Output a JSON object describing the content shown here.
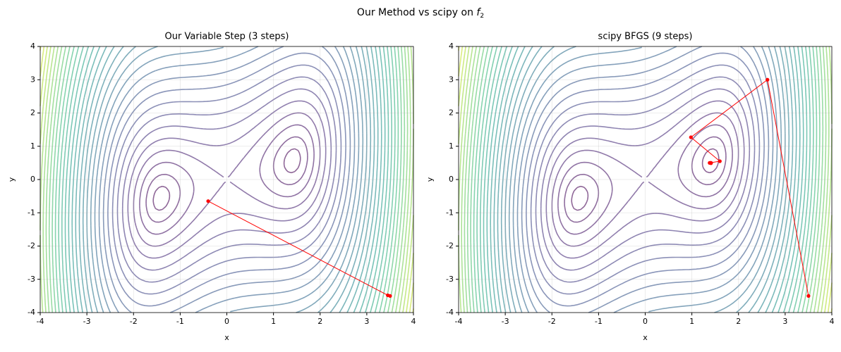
{
  "title": "Our Method vs scipy on",
  "title_symbol": "f",
  "title_subscript": "2",
  "chart_data": [
    {
      "type": "line",
      "title": "Our Variable Step (3 steps)",
      "xlabel": "x",
      "ylabel": "y",
      "xlim": [
        -4,
        4
      ],
      "ylim": [
        -4,
        4
      ],
      "xticks": [
        -4,
        -3,
        -2,
        -1,
        0,
        1,
        2,
        3,
        4
      ],
      "yticks": [
        -4,
        -3,
        -2,
        -1,
        0,
        1,
        2,
        3,
        4
      ],
      "grid": true,
      "series": [
        {
          "color": "#ff0000",
          "x": [
            3.5,
            3.45,
            -0.4
          ],
          "values": [
            -3.5,
            -3.48,
            -0.65
          ]
        }
      ]
    },
    {
      "type": "line",
      "title": "scipy BFGS (9 steps)",
      "xlabel": "x",
      "ylabel": "y",
      "xlim": [
        -4,
        4
      ],
      "ylim": [
        -4,
        4
      ],
      "xticks": [
        -4,
        -3,
        -2,
        -1,
        0,
        1,
        2,
        3,
        4
      ],
      "yticks": [
        -4,
        -3,
        -2,
        -1,
        0,
        1,
        2,
        3,
        4
      ],
      "grid": true,
      "series": [
        {
          "color": "#ff0000",
          "x": [
            3.5,
            2.62,
            0.98,
            1.6,
            1.38,
            1.4,
            1.41,
            1.41,
            1.41
          ],
          "values": [
            -3.5,
            3.0,
            1.27,
            0.55,
            0.5,
            0.5,
            0.49,
            0.5,
            0.5
          ]
        }
      ]
    }
  ]
}
